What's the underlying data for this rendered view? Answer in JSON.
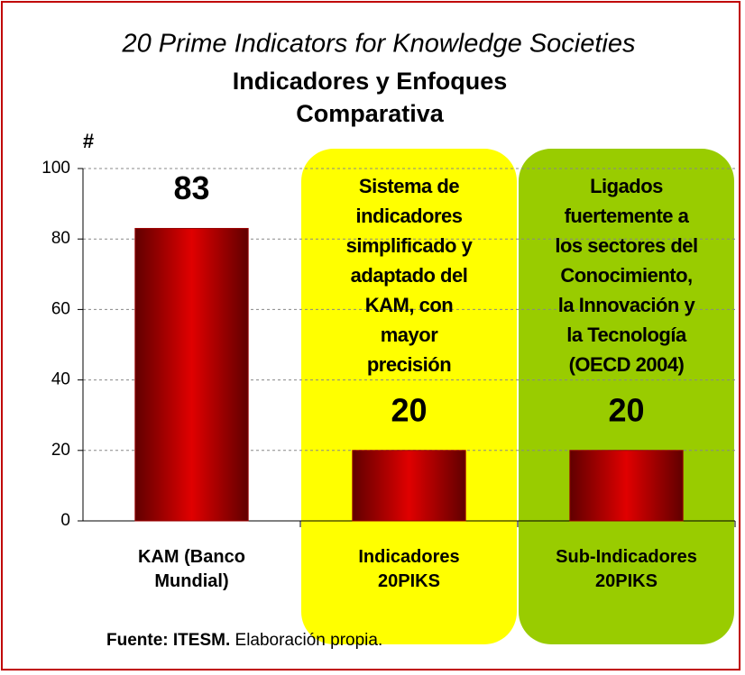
{
  "chart_data": {
    "type": "bar",
    "title": "20 Prime Indicators for Knowledge Societies",
    "subtitle": "Indicadores y Enfoques\nComparativa",
    "y_label": "#",
    "categories": [
      "KAM (Banco\nMundial)",
      "Indicadores\n20PIKS",
      "Sub-Indicadores\n20PIKS"
    ],
    "values": [
      83,
      20,
      20
    ],
    "color": "#e00000",
    "ylim": [
      0,
      100
    ],
    "yticks": [
      0,
      20,
      40,
      60,
      80,
      100
    ],
    "grid": true,
    "annotations": [
      {
        "text": "Sistema de\nindicadores\nsimplificado y\nadaptado del\nKAM, con\nmayor\nprecisión",
        "color": "#ffff00"
      },
      {
        "text": "Ligados\nfuertemente a\nlos sectores del\nConocimiento,\nla Innovación y\nla Tecnología\n(OECD 2004)",
        "color": "#99cc00"
      }
    ],
    "source": {
      "bold": "Fuente: ITESM.",
      "text": "Elaboración propia."
    }
  }
}
